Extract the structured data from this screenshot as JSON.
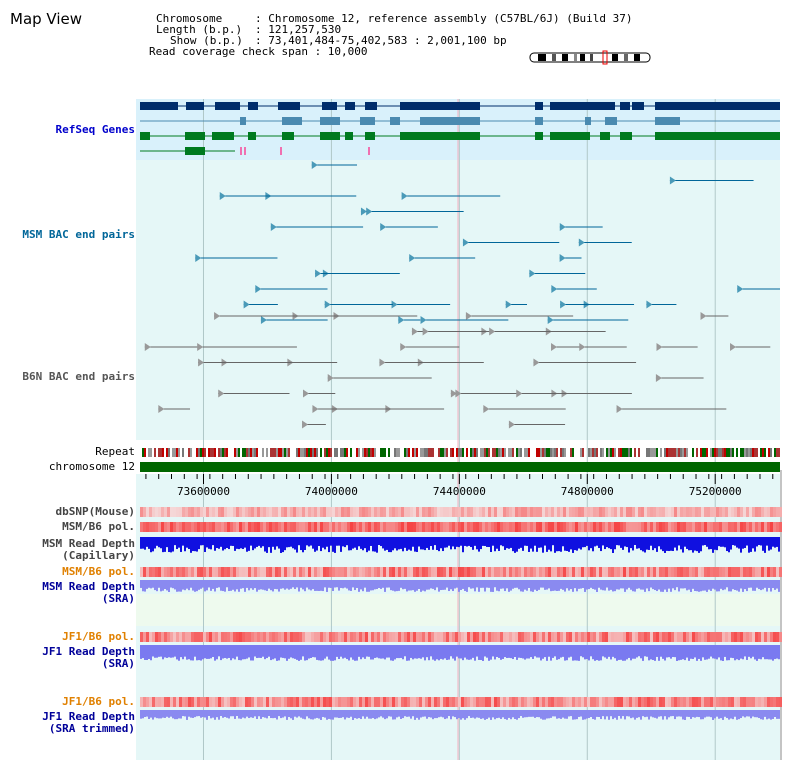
{
  "page": {
    "title": "Map View"
  },
  "info": {
    "chromosome_key": "Chromosome",
    "chromosome_val": ": Chromosome 12, reference assembly (C57BL/6J) (Build 37)",
    "length_key": "Length (b.p.)",
    "length_val": ": 121,257,530",
    "show_key": "Show (b.p.)",
    "show_val": ": 73,401,484-75,402,583 : 2,001,100 bp",
    "span_line": "Read coverage check span : 10,000"
  },
  "tracks": {
    "refseq": "RefSeq Genes",
    "msm_bac": "MSM BAC end pairs",
    "b6n_bac": "B6N BAC end pairs",
    "repeat": "Repeat",
    "chromosome": "chromosome 12",
    "dbsnp": "dbSNP(Mouse)",
    "msm_pol": "MSM/B6 pol.",
    "msm_depth_cap_1": "MSM Read Depth",
    "msm_depth_cap_2": "(Capillary)",
    "msm_pol_sra": "MSM/B6 pol.",
    "msm_depth_sra_1": "MSM Read Depth",
    "msm_depth_sra_2": "(SRA)",
    "jf1_pol": "JF1/B6 pol.",
    "jf1_depth_1": "JF1 Read Depth",
    "jf1_depth_2": "(SRA)",
    "jf1_pol_trim": "JF1/B6 pol.",
    "jf1_trim_1": "JF1 Read Depth",
    "jf1_trim_2": "(SRA trimmed)"
  },
  "axis": {
    "start": 73401484,
    "end": 75402583,
    "ticks": [
      73600000,
      74000000,
      74400000,
      74800000,
      75200000
    ]
  },
  "colors": {
    "refseq_label": "#0000cc",
    "msm_label": "#006699",
    "b6n_label": "#555555",
    "orange_label": "#e08000",
    "blue_label": "#000099",
    "chromosome_bar": "#006600",
    "gene_dark": "#002d6b",
    "gene_mid": "#4a8ab0",
    "gene_green": "#007a1f"
  }
}
